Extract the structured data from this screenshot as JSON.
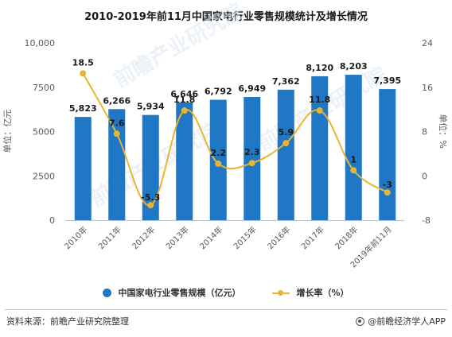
{
  "title": "2010-2019年前11月中国家电行业零售规模统计及增长情况",
  "watermark": "前瞻产业研究院",
  "footer": {
    "source": "资料来源：前瞻产业研究院整理",
    "brand": "@前瞻经济学人APP",
    "brand_icon": "brand-logo-icon"
  },
  "legend": {
    "bar_label": "中国家电行业零售规模（亿元）",
    "line_label": "增长率（%）"
  },
  "colors": {
    "bar": "#1f77c6",
    "line": "#e8b531"
  },
  "chart_data": {
    "type": "bar",
    "categories": [
      "2010年",
      "2011年",
      "2012年",
      "2013年",
      "2014年",
      "2015年",
      "2016年",
      "2017年",
      "2018年",
      "2019年前11月"
    ],
    "series": [
      {
        "name": "中国家电行业零售规模（亿元）",
        "type": "bar",
        "axis": "left",
        "values": [
          5823,
          6266,
          5934,
          6646,
          6792,
          6949,
          7362,
          8120,
          8203,
          7395
        ],
        "labels": [
          "5,823",
          "6,266",
          "5,934",
          "6,646",
          "6,792",
          "6,949",
          "7,362",
          "8,120",
          "8,203",
          "7,395"
        ]
      },
      {
        "name": "增长率（%）",
        "type": "line",
        "axis": "right",
        "values": [
          18.5,
          7.6,
          -5.3,
          11.8,
          2.2,
          2.3,
          5.9,
          11.8,
          1,
          -3
        ],
        "labels": [
          "18.5",
          "7.6",
          "-5.3",
          "11.8",
          "2.2",
          "2.3",
          "5.9",
          "11.8",
          "1",
          "-3"
        ]
      }
    ],
    "ylabel_left": "单位：亿元",
    "ylabel_right": "单位：%",
    "ylim_left": [
      0,
      10000
    ],
    "yticks_left": [
      "0",
      "2500",
      "5000",
      "7500",
      "10,000"
    ],
    "ylim_right": [
      -8,
      24
    ],
    "yticks_right": [
      "-8",
      "0",
      "8",
      "16",
      "24"
    ],
    "grid": false,
    "legend_position": "bottom"
  }
}
